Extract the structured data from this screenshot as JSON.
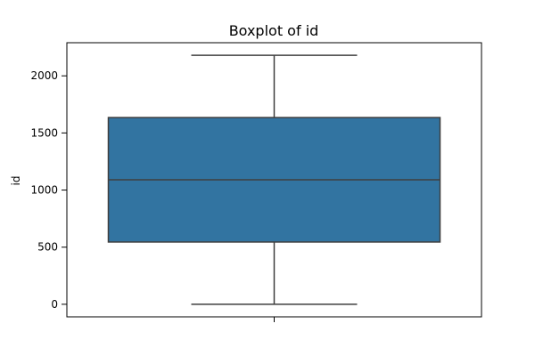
{
  "chart_data": {
    "type": "boxplot",
    "title": "Boxplot of id",
    "xlabel": "",
    "ylabel": "id",
    "yticks": [
      0,
      500,
      1000,
      1500,
      2000
    ],
    "ylim": [
      -110,
      2290
    ],
    "xlim": [
      -0.5,
      0.5
    ],
    "box": {
      "min": 0,
      "q1": 545,
      "median": 1090,
      "q3": 1635,
      "max": 2180
    },
    "colors": {
      "box_fill": "#3274a1",
      "line": "#3f3f3f"
    },
    "grid": false,
    "legend": "none"
  }
}
